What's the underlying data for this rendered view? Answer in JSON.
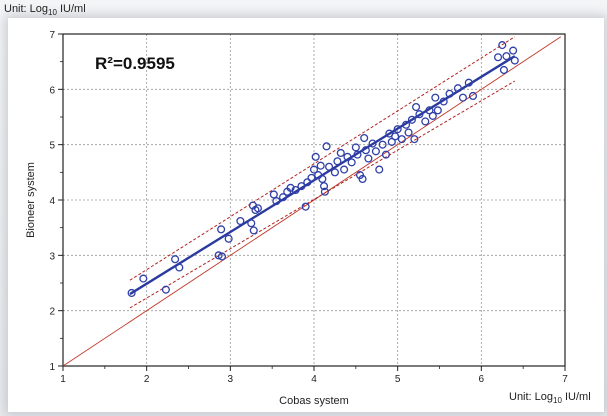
{
  "units": {
    "top": {
      "prefix": "Unit: Log",
      "sub": "10",
      "suffix": " IU/ml"
    },
    "bottom": {
      "prefix": "Unit: Log",
      "sub": "10",
      "suffix": " IU/ml"
    }
  },
  "chart_data": {
    "type": "scatter",
    "xlabel": "Cobas system",
    "ylabel": "Bioneer system",
    "annotation": "R²=0.9595",
    "xlim": [
      1,
      7
    ],
    "ylim": [
      1,
      7
    ],
    "xticks": [
      1,
      2,
      3,
      4,
      5,
      6,
      7
    ],
    "yticks": [
      1,
      2,
      3,
      4,
      5,
      6,
      7
    ],
    "grid": true,
    "colors": {
      "points": "#2f3fa8",
      "fit_line": "#2b3a9e",
      "confidence_band": "#b22222",
      "identity_line": "#c0392b"
    },
    "fit_line": {
      "x": [
        1.8,
        6.4
      ],
      "y": [
        2.3,
        6.6
      ]
    },
    "confidence_band": {
      "upper": {
        "x": [
          1.8,
          6.4
        ],
        "y": [
          2.55,
          6.95
        ]
      },
      "lower": {
        "x": [
          1.8,
          6.4
        ],
        "y": [
          2.05,
          6.15
        ]
      }
    },
    "identity_line": {
      "x": [
        1.0,
        6.95
      ],
      "y": [
        1.0,
        6.95
      ]
    },
    "points": [
      [
        1.82,
        2.32
      ],
      [
        1.96,
        2.58
      ],
      [
        2.23,
        2.38
      ],
      [
        2.34,
        2.93
      ],
      [
        2.39,
        2.78
      ],
      [
        2.86,
        3.0
      ],
      [
        2.9,
        2.98
      ],
      [
        2.89,
        3.47
      ],
      [
        2.98,
        3.3
      ],
      [
        3.12,
        3.62
      ],
      [
        3.25,
        3.58
      ],
      [
        3.27,
        3.9
      ],
      [
        3.3,
        3.82
      ],
      [
        3.28,
        3.45
      ],
      [
        3.33,
        3.85
      ],
      [
        3.52,
        4.1
      ],
      [
        3.55,
        3.98
      ],
      [
        3.63,
        4.05
      ],
      [
        3.68,
        4.15
      ],
      [
        3.72,
        4.22
      ],
      [
        3.78,
        4.18
      ],
      [
        3.85,
        4.25
      ],
      [
        3.9,
        3.88
      ],
      [
        3.92,
        4.32
      ],
      [
        3.97,
        4.4
      ],
      [
        4.0,
        4.55
      ],
      [
        4.02,
        4.78
      ],
      [
        4.05,
        4.45
      ],
      [
        4.08,
        4.62
      ],
      [
        4.1,
        4.38
      ],
      [
        4.12,
        4.25
      ],
      [
        4.13,
        4.15
      ],
      [
        4.15,
        4.97
      ],
      [
        4.18,
        4.6
      ],
      [
        4.25,
        4.5
      ],
      [
        4.28,
        4.7
      ],
      [
        4.32,
        4.85
      ],
      [
        4.36,
        4.55
      ],
      [
        4.4,
        4.78
      ],
      [
        4.45,
        4.68
      ],
      [
        4.5,
        4.95
      ],
      [
        4.52,
        4.82
      ],
      [
        4.55,
        4.45
      ],
      [
        4.58,
        4.38
      ],
      [
        4.6,
        5.12
      ],
      [
        4.62,
        4.9
      ],
      [
        4.65,
        4.75
      ],
      [
        4.7,
        5.02
      ],
      [
        4.74,
        4.88
      ],
      [
        4.78,
        4.55
      ],
      [
        4.82,
        5.0
      ],
      [
        4.86,
        4.82
      ],
      [
        4.9,
        5.2
      ],
      [
        4.93,
        5.05
      ],
      [
        4.97,
        5.15
      ],
      [
        5.0,
        5.28
      ],
      [
        5.05,
        5.1
      ],
      [
        5.1,
        5.36
      ],
      [
        5.13,
        5.22
      ],
      [
        5.17,
        5.45
      ],
      [
        5.2,
        5.1
      ],
      [
        5.22,
        5.68
      ],
      [
        5.26,
        5.55
      ],
      [
        5.33,
        5.42
      ],
      [
        5.38,
        5.62
      ],
      [
        5.42,
        5.52
      ],
      [
        5.45,
        5.85
      ],
      [
        5.48,
        5.62
      ],
      [
        5.55,
        5.78
      ],
      [
        5.62,
        5.92
      ],
      [
        5.72,
        6.02
      ],
      [
        5.78,
        5.85
      ],
      [
        5.85,
        6.12
      ],
      [
        5.9,
        5.88
      ],
      [
        6.2,
        6.58
      ],
      [
        6.25,
        6.8
      ],
      [
        6.27,
        6.35
      ],
      [
        6.3,
        6.6
      ],
      [
        6.38,
        6.7
      ],
      [
        6.4,
        6.52
      ]
    ]
  }
}
